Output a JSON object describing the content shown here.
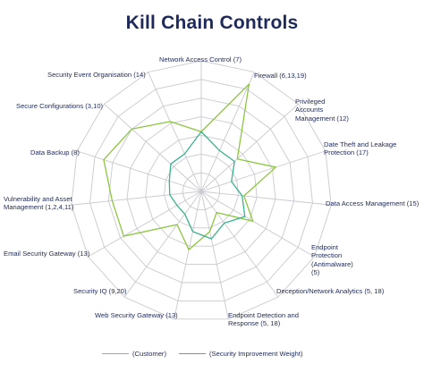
{
  "chart_data": {
    "type": "radar",
    "title": "Kill Chain Controls",
    "axes": [
      "Network Access Control (7)",
      "Firewall (6,13,19)",
      "Privileged Accounts Management (12)",
      "Date Theft and Leakage Protection (17)",
      "Data Access Management (15)",
      "Endpoint Protection (Antimalware) (5)",
      "Deception/Network Analytics (5, 18)",
      "Endpoint Detection and Response (5, 18)",
      "Web Security Gateway (13)",
      "Security IQ (9,20)",
      "Email Security Gateway (13)",
      "Vulnerability and Asset Management (1,2,4,11)",
      "Data Backup (8)",
      "Secure Configurations (3,10)",
      "Security Event Organisation (14)"
    ],
    "series": [
      {
        "name": "(Customer)",
        "color": "#8dc63f",
        "values": [
          3.2,
          6.3,
          2.6,
          4.2,
          2.3,
          3.2,
          1.4,
          2.2,
          3.2,
          2.2,
          4.8,
          4.8,
          5.5,
          5.0,
          4.1
        ]
      },
      {
        "name": "(Security Improvement Weight)",
        "color": "#3cb28f",
        "values": [
          3.2,
          2.4,
          2.4,
          1.7,
          2.2,
          2.7,
          2.1,
          2.6,
          2.2,
          1.5,
          1.5,
          1.7,
          1.8,
          2.2,
          2.2
        ]
      }
    ],
    "scale": {
      "min": 0,
      "max": 7,
      "rings": 7
    },
    "grid": true,
    "legend_position": "bottom"
  },
  "legend": {
    "customer": "(Customer)",
    "weight": "(Security Improvement Weight)"
  }
}
